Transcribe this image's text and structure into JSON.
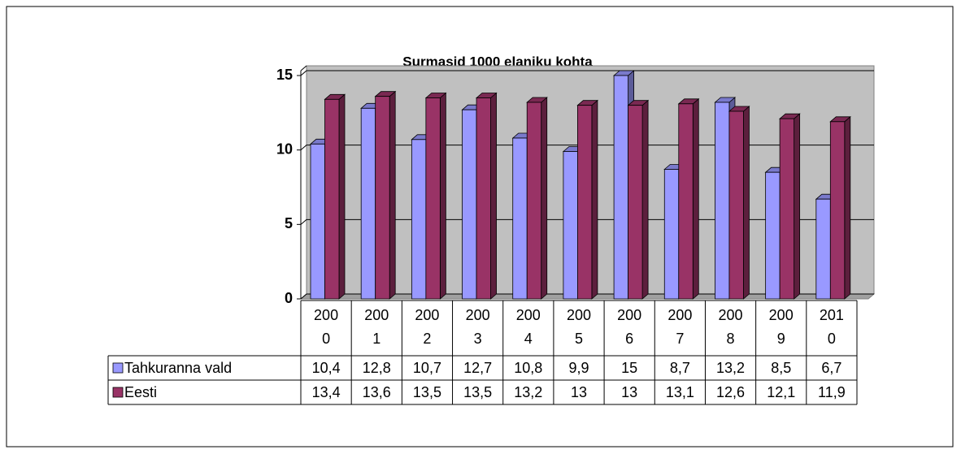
{
  "chart_data": {
    "type": "bar",
    "title": "Surmasid 1000 elaniku kohta",
    "categories": [
      "2000",
      "2001",
      "2002",
      "2003",
      "2004",
      "2005",
      "2006",
      "2007",
      "2008",
      "2009",
      "2010"
    ],
    "series": [
      {
        "name": "Tahkuranna vald",
        "color": "#9999ff",
        "values": [
          10.4,
          12.8,
          10.7,
          12.7,
          10.8,
          9.9,
          15,
          8.7,
          13.2,
          8.5,
          6.7
        ],
        "value_labels": [
          "10,4",
          "12,8",
          "10,7",
          "12,7",
          "10,8",
          "9,9",
          "15",
          "8,7",
          "13,2",
          "8,5",
          "6,7"
        ]
      },
      {
        "name": "Eesti",
        "color": "#993366",
        "values": [
          13.4,
          13.6,
          13.5,
          13.5,
          13.2,
          13,
          13,
          13.1,
          12.6,
          12.1,
          11.9
        ],
        "value_labels": [
          "13,4",
          "13,6",
          "13,5",
          "13,5",
          "13,2",
          "13",
          "13",
          "13,1",
          "12,6",
          "12,1",
          "11,9"
        ]
      }
    ],
    "ylim": [
      0,
      15
    ],
    "yticks": [
      0,
      5,
      10,
      15
    ],
    "grid": true,
    "wall_color": "#c0c0c0"
  }
}
